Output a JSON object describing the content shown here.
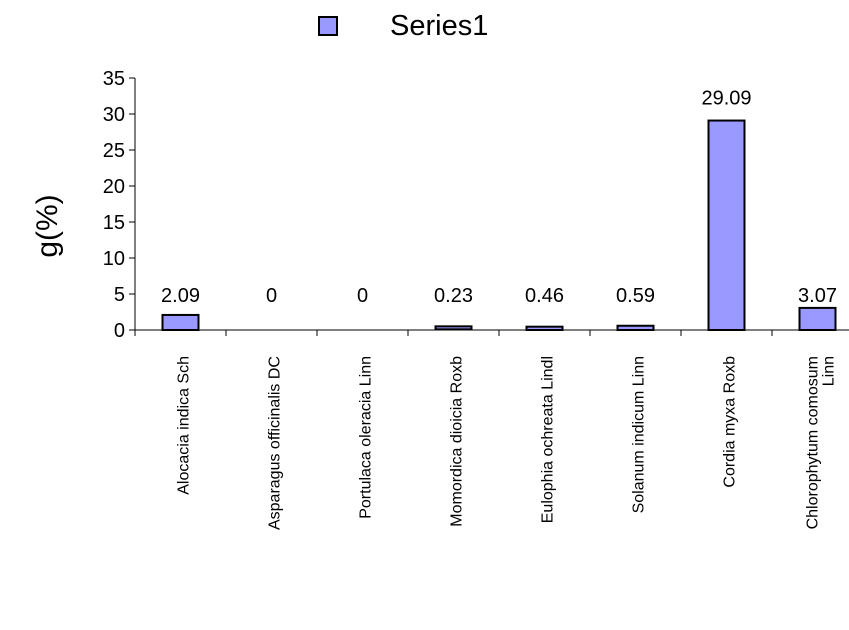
{
  "chart_data": {
    "type": "bar",
    "categories": [
      "Alocacia indica Sch",
      "Asparagus officinalis DC",
      "Portulaca oleracia Linn",
      "Momordica dioicia Roxb",
      "Eulophia ochreata Lindl",
      "Solanum indicum Linn",
      "Cordia myxa Roxb",
      "Chlorophytum comosum Linn"
    ],
    "category_lines": [
      [
        "Alocacia indica Sch"
      ],
      [
        "Asparagus officinalis DC"
      ],
      [
        "Portulaca oleracia Linn"
      ],
      [
        "Momordica dioicia Roxb"
      ],
      [
        "Eulophia ochreata Lindl"
      ],
      [
        "Solanum indicum Linn"
      ],
      [
        "Cordia myxa Roxb"
      ],
      [
        "Chlorophytum comosum",
        "Linn"
      ]
    ],
    "series": [
      {
        "name": "Series1",
        "values": [
          2.09,
          0,
          0,
          0.23,
          0.46,
          0.59,
          29.09,
          3.07
        ]
      }
    ],
    "data_labels": [
      "2.09",
      "0",
      "0",
      "0.23",
      "0.46",
      "0.59",
      "29.09",
      "3.07"
    ],
    "ylabel": "g(%)",
    "xlabel": "",
    "ylim": [
      0,
      35
    ],
    "yticks": [
      0,
      5,
      10,
      15,
      20,
      25,
      30,
      35
    ],
    "grid": false,
    "legend_position": "top",
    "colors": {
      "bar_fill": "#9999ff",
      "bar_stroke": "#000000"
    }
  }
}
